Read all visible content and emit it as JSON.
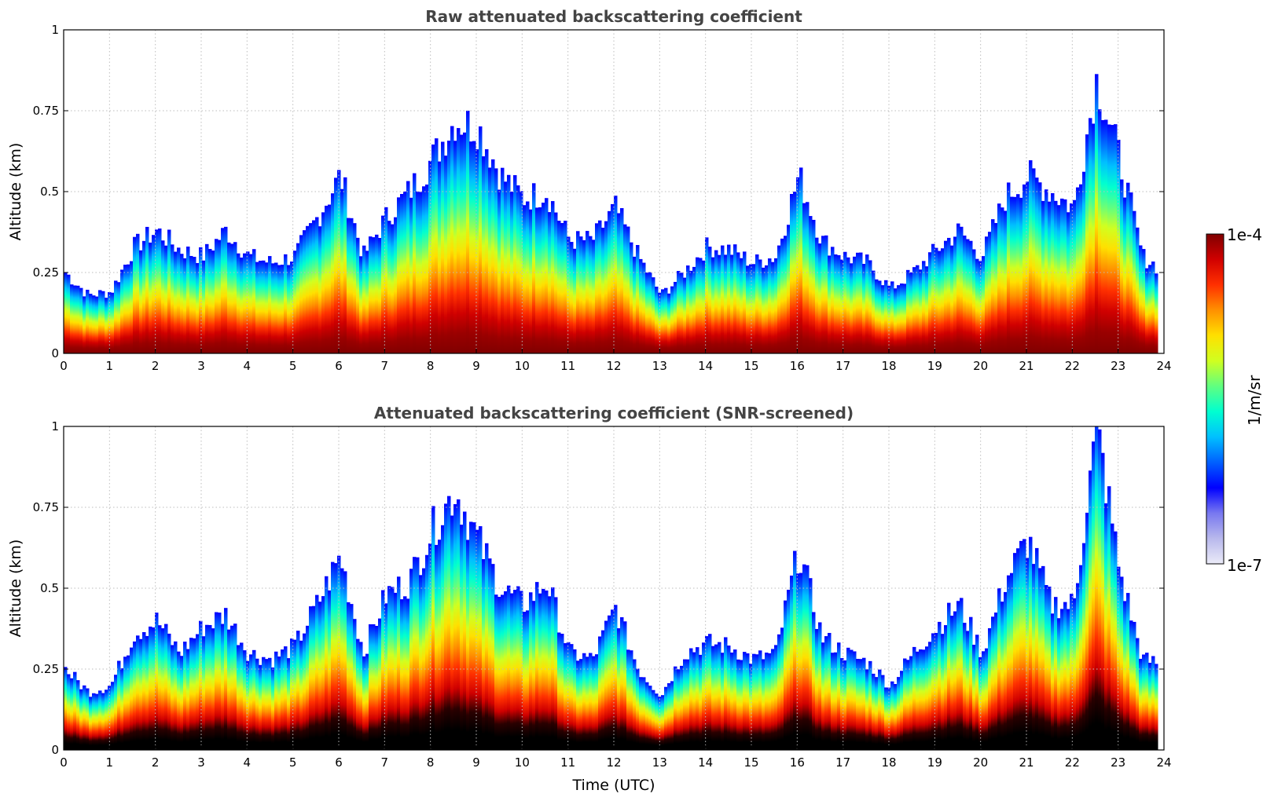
{
  "chart_data": [
    {
      "type": "heatmap",
      "title": "Raw attenuated backscattering coefficient",
      "xlabel": "",
      "ylabel": "Altitude (km)",
      "xlim": [
        0,
        24
      ],
      "ylim": [
        0,
        1
      ],
      "x_ticks": [
        "0",
        "1",
        "2",
        "3",
        "4",
        "5",
        "6",
        "7",
        "8",
        "9",
        "10",
        "11",
        "12",
        "13",
        "14",
        "15",
        "16",
        "17",
        "18",
        "19",
        "20",
        "21",
        "22",
        "23",
        "24"
      ],
      "y_ticks": [
        "0",
        "0.25",
        "0.5",
        "0.75",
        "1"
      ],
      "grid": true,
      "screened": false,
      "boundary_layer_top_km": {
        "time_utc": [
          0,
          0.5,
          1,
          1.5,
          2,
          2.5,
          3,
          3.5,
          4,
          4.5,
          5,
          5.5,
          6,
          6.5,
          7,
          7.5,
          8,
          8.5,
          9,
          9.5,
          10,
          10.5,
          11,
          11.5,
          12,
          12.5,
          13,
          13.5,
          14,
          14.5,
          15,
          15.5,
          16,
          16.5,
          17,
          17.5,
          18,
          18.5,
          19,
          19.5,
          20,
          20.5,
          21,
          21.5,
          22,
          22.5,
          23,
          23.5,
          23.8
        ],
        "altitude": [
          0.25,
          0.18,
          0.19,
          0.33,
          0.38,
          0.32,
          0.3,
          0.38,
          0.3,
          0.28,
          0.3,
          0.42,
          0.55,
          0.3,
          0.42,
          0.5,
          0.6,
          0.72,
          0.7,
          0.55,
          0.48,
          0.5,
          0.35,
          0.35,
          0.45,
          0.3,
          0.18,
          0.25,
          0.33,
          0.32,
          0.28,
          0.3,
          0.55,
          0.35,
          0.3,
          0.28,
          0.2,
          0.25,
          0.32,
          0.38,
          0.3,
          0.48,
          0.55,
          0.5,
          0.45,
          0.85,
          0.6,
          0.3,
          0.27
        ]
      }
    },
    {
      "type": "heatmap",
      "title": "Attenuated backscattering coefficient (SNR-screened)",
      "xlabel": "Time (UTC)",
      "ylabel": "Altitude (km)",
      "xlim": [
        0,
        24
      ],
      "ylim": [
        0,
        1
      ],
      "x_ticks": [
        "0",
        "1",
        "2",
        "3",
        "4",
        "5",
        "6",
        "7",
        "8",
        "9",
        "10",
        "11",
        "12",
        "13",
        "14",
        "15",
        "16",
        "17",
        "18",
        "19",
        "20",
        "21",
        "22",
        "23",
        "24"
      ],
      "y_ticks": [
        "0",
        "0.25",
        "0.5",
        "0.75",
        "1"
      ],
      "grid": true,
      "screened": true,
      "boundary_layer_top_km": {
        "time_utc": [
          0,
          0.5,
          1,
          1.5,
          2,
          2.5,
          3,
          3.5,
          4,
          4.5,
          5,
          5.5,
          6,
          6.5,
          7,
          7.5,
          8,
          8.5,
          9,
          9.5,
          10,
          10.5,
          11,
          11.5,
          12,
          12.5,
          13,
          13.5,
          14,
          14.5,
          15,
          15.5,
          16,
          16.5,
          17,
          17.5,
          18,
          18.5,
          19,
          19.5,
          20,
          20.5,
          21,
          21.5,
          22,
          22.5,
          23,
          23.5,
          23.8
        ],
        "altitude": [
          0.25,
          0.18,
          0.2,
          0.36,
          0.4,
          0.3,
          0.38,
          0.42,
          0.3,
          0.28,
          0.32,
          0.45,
          0.6,
          0.3,
          0.48,
          0.52,
          0.68,
          0.8,
          0.65,
          0.5,
          0.45,
          0.52,
          0.3,
          0.28,
          0.44,
          0.25,
          0.17,
          0.3,
          0.33,
          0.32,
          0.28,
          0.3,
          0.62,
          0.35,
          0.3,
          0.27,
          0.2,
          0.3,
          0.38,
          0.45,
          0.3,
          0.52,
          0.65,
          0.45,
          0.45,
          1.0,
          0.55,
          0.28,
          0.27
        ]
      }
    }
  ],
  "colorbar": {
    "label": "1/m/sr",
    "max_label": "1e-4",
    "min_label": "1e-7",
    "min": 1e-07,
    "max": 0.0001,
    "scale": "log",
    "colors": [
      "#ebebf8",
      "#b8b8ec",
      "#7878f0",
      "#0000ff",
      "#0060ff",
      "#00c0ff",
      "#00ffd0",
      "#60ff80",
      "#d0ff20",
      "#ffe000",
      "#ff9000",
      "#ff3000",
      "#d00000",
      "#800000"
    ]
  }
}
